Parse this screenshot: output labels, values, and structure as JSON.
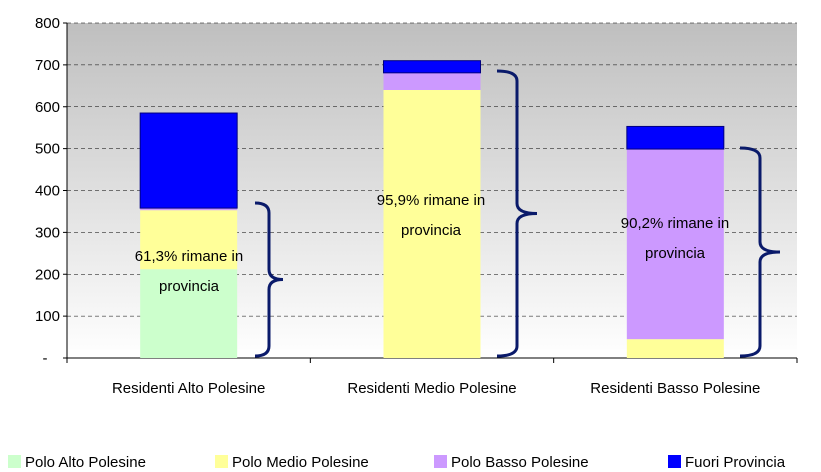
{
  "chart_data": {
    "type": "stacked-bar",
    "categories": [
      "Residenti Alto Polesine",
      "Residenti Medio Polesine",
      "Residenti Basso Polesine"
    ],
    "series": [
      {
        "name": "Polo Alto Polesine",
        "color": "#ccffcc",
        "values": [
          212,
          0,
          0
        ]
      },
      {
        "name": "Polo Medio Polesine",
        "color": "#ffff99",
        "values": [
          141,
          640,
          45
        ]
      },
      {
        "name": "Polo Basso Polesine",
        "color": "#cc99ff",
        "values": [
          5,
          41,
          454
        ]
      },
      {
        "name": "Fuori Provincia",
        "color": "#0000ff",
        "values": [
          227,
          29,
          54
        ]
      }
    ],
    "ylim": [
      0,
      800
    ],
    "yticks": [
      {
        "value": 0,
        "label": "-"
      },
      100,
      200,
      300,
      400,
      500,
      600,
      700,
      800
    ],
    "grid": true,
    "legend": "bottom",
    "annotations": [
      "61,3% rimane in provincia",
      "95,9% rimane in provincia",
      "90,2% rimane in provincia"
    ]
  }
}
